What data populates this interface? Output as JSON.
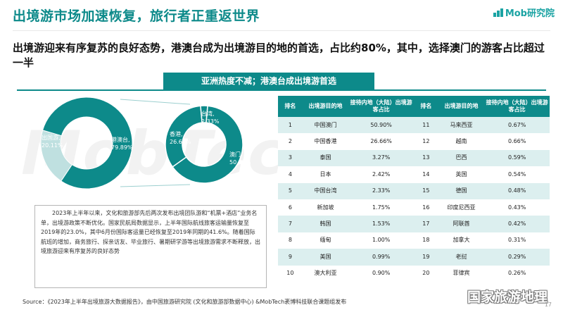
{
  "header": {
    "title": "出境游市场加速恢复，旅行者正重返世界",
    "logo_text": "Mob研究院",
    "subtitle": "出境游迎来有序复苏的良好态势，港澳台成为出境游目的地的首选，占比约80%，其中，选择澳门的游客占比超过一半"
  },
  "section_title": "亚洲热度不减；港澳台成出境游首选",
  "watermark_text": "MobTech",
  "donut_outer": {
    "segments": [
      {
        "label": "出国游,",
        "value_text": "20.11%",
        "value": 20.11,
        "color": "#ffffff"
      },
      {
        "label": "港澳台,",
        "value_text": "79.89%",
        "value": 79.89,
        "color": "#0d8a8a"
      }
    ]
  },
  "donut_inner": {
    "segments": [
      {
        "label": "澳门",
        "value_text": "50.90%",
        "value": 50.9,
        "color": "#0d8a8a"
      },
      {
        "label": "香港,",
        "value_text": "26.66%",
        "value": 26.66,
        "color": "#0d8a8a"
      },
      {
        "label": "台湾,",
        "value_text": "2.33%",
        "value": 2.33,
        "color": "#0d8a8a"
      }
    ]
  },
  "description": "2023年上半年以来，文化和旅游部先后两次发布出境团队游和“机票+酒店”业务名单，出境游政策不断优化。国家民航局数据显示，上半年国际航线旅客运输量恢复至2019年的23.0%，其中6月份国际客运量已经恢复至2019年同期的41.6%。随着国际航班的增加，商务旅行、探亲访友、毕业旅行、暑期研学游等出境旅游需求不断释放，出境旅游迎来有序复苏的良好态势",
  "table": {
    "headers": {
      "rank": "排名",
      "dest": "出境游目的地",
      "share": "接待内地（大陆）出境游客占比"
    },
    "rows": [
      {
        "r1": "1",
        "d1": "中国澳门",
        "s1": "50.90%",
        "r2": "11",
        "d2": "马来西亚",
        "s2": "0.67%"
      },
      {
        "r1": "2",
        "d1": "中国香港",
        "s1": "26.66%",
        "r2": "12",
        "d2": "越南",
        "s2": "0.66%"
      },
      {
        "r1": "3",
        "d1": "泰国",
        "s1": "3.27%",
        "r2": "13",
        "d2": "巴西",
        "s2": "0.59%"
      },
      {
        "r1": "4",
        "d1": "日本",
        "s1": "2.42%",
        "r2": "14",
        "d2": "英国",
        "s2": "0.54%"
      },
      {
        "r1": "5",
        "d1": "中国台湾",
        "s1": "2.33%",
        "r2": "15",
        "d2": "德国",
        "s2": "0.48%"
      },
      {
        "r1": "6",
        "d1": "新加坡",
        "s1": "1.75%",
        "r2": "16",
        "d2": "印度尼西亚",
        "s2": "0.43%"
      },
      {
        "r1": "7",
        "d1": "韩国",
        "s1": "1.53%",
        "r2": "17",
        "d2": "阿联酋",
        "s2": "0.42%"
      },
      {
        "r1": "8",
        "d1": "缅甸",
        "s1": "1.00%",
        "r2": "18",
        "d2": "加拿大",
        "s2": "0.31%"
      },
      {
        "r1": "9",
        "d1": "美国",
        "s1": "0.99%",
        "r2": "19",
        "d2": "老挝",
        "s2": "0.29%"
      },
      {
        "r1": "10",
        "d1": "澳大利亚",
        "s1": "0.90%",
        "r2": "20",
        "d2": "菲律宾",
        "s2": "0.26%"
      }
    ]
  },
  "source": "Source：《2023年上半年出境旅游大数据报告》，由中国旅游研究院 (文化和旅游部数据中心) &MobTech袤博科技联合课题组发布",
  "corner_mark": "国家旅游地理",
  "page_number": "17"
}
